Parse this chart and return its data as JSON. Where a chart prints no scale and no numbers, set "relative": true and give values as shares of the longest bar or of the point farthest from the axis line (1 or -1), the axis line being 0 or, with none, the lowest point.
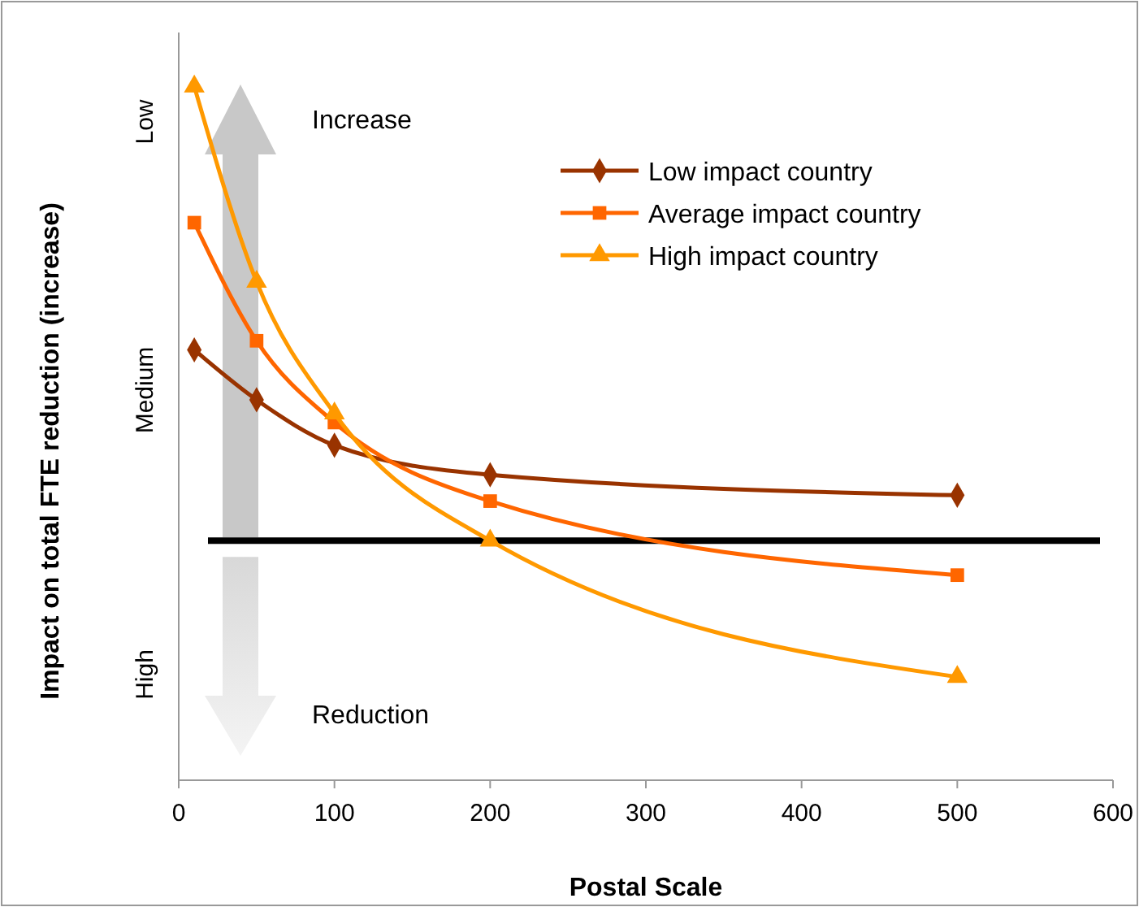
{
  "chart_data": {
    "type": "line",
    "relative": true,
    "xlabel": "Postal Scale",
    "ylabel": "Impact on total FTE reduction (increase)",
    "x": [
      10,
      50,
      100,
      200,
      500
    ],
    "xlim": [
      0,
      600
    ],
    "xticks": [
      0,
      100,
      200,
      300,
      400,
      500,
      600
    ],
    "series": [
      {
        "name": "Low impact country",
        "color": "#993300",
        "marker": "diamond",
        "values": [
          0.42,
          0.31,
          0.21,
          0.145,
          0.1
        ]
      },
      {
        "name": "Average impact country",
        "color": "#ff6600",
        "marker": "square",
        "values": [
          0.7,
          0.44,
          0.26,
          0.087,
          -0.076
        ]
      },
      {
        "name": "High impact country",
        "color": "#ff9900",
        "marker": "triangle",
        "values": [
          1,
          0.57,
          0.28,
          0,
          -0.3
        ]
      }
    ],
    "legend": "top right",
    "annotations": [
      "Low",
      "Medium",
      "High",
      "Increase",
      "Reduction"
    ]
  }
}
